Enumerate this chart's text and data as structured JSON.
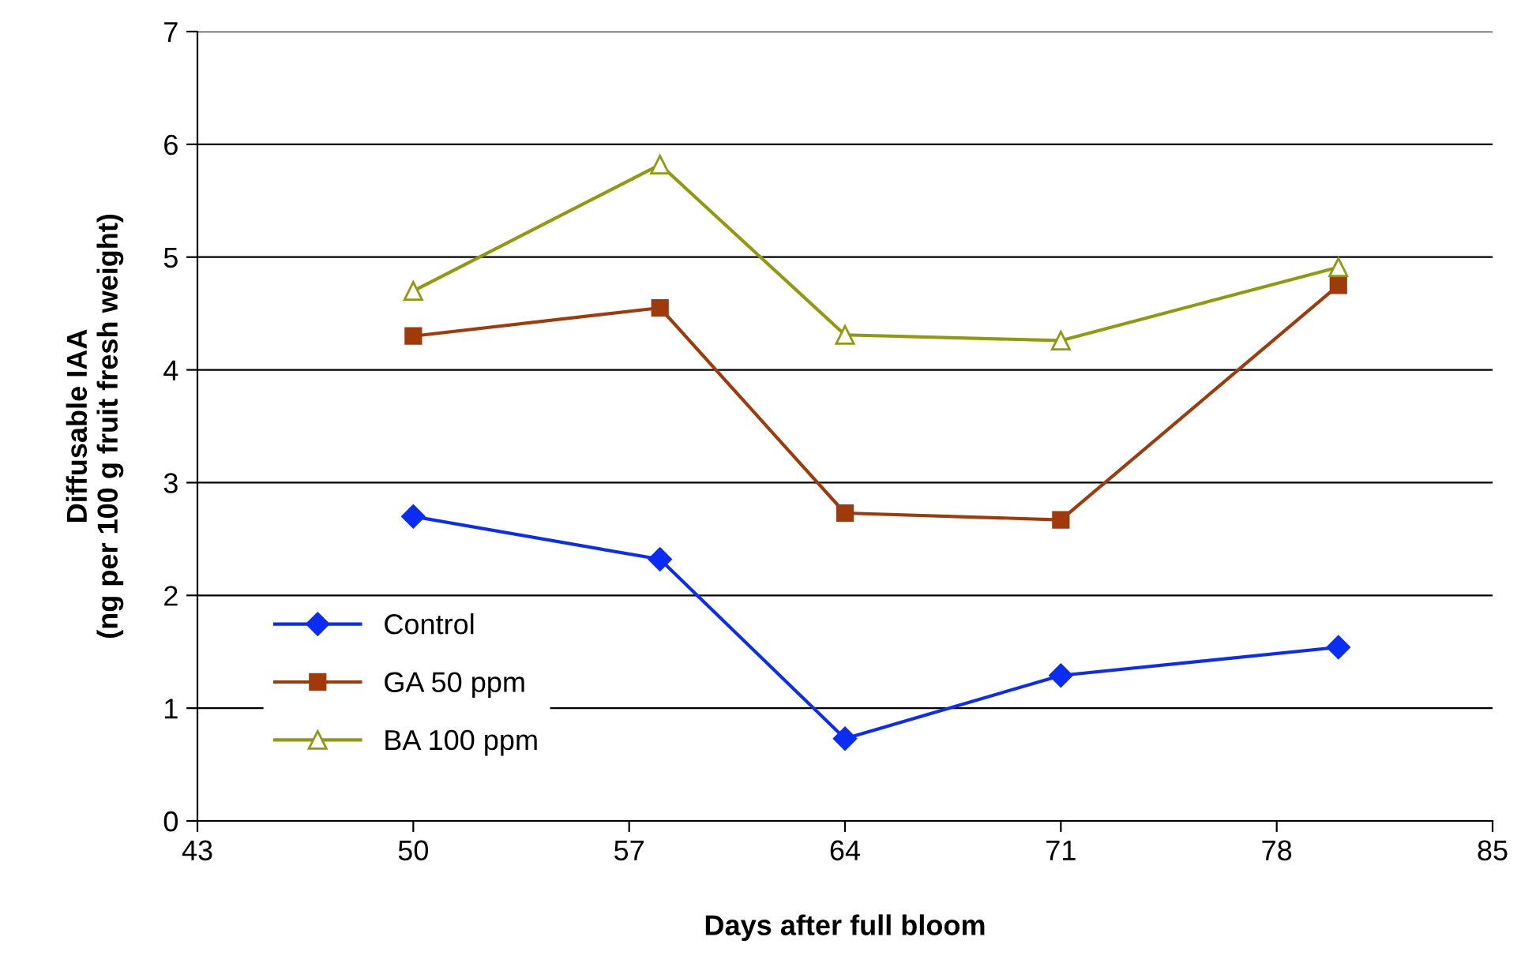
{
  "chart_data": {
    "type": "line",
    "xlabel": "Days after full bloom",
    "ylabel": "Diffusable IAA\n(ng per 100 g fruit fresh weight)",
    "x": [
      50,
      58,
      64,
      71,
      80
    ],
    "series": [
      {
        "name": "Control",
        "color": "#0a2cf5",
        "marker": "diamond",
        "values": [
          2.7,
          2.32,
          0.73,
          1.29,
          1.54
        ]
      },
      {
        "name": "GA 50 ppm",
        "color": "#a03a0a",
        "marker": "square",
        "values": [
          4.3,
          4.55,
          2.73,
          2.67,
          4.75
        ]
      },
      {
        "name": "BA 100 ppm",
        "color": "#8f9a0c",
        "marker": "triangle",
        "values": [
          4.7,
          5.82,
          4.31,
          4.26,
          4.91
        ]
      }
    ],
    "xlim": [
      43,
      85
    ],
    "xticks": [
      43,
      50,
      57,
      64,
      71,
      78,
      85
    ],
    "ylim": [
      0,
      7
    ],
    "yticks": [
      0,
      1,
      2,
      3,
      4,
      5,
      6,
      7
    ],
    "grid": "y",
    "legend": "bottom left",
    "line_style": "solid"
  }
}
